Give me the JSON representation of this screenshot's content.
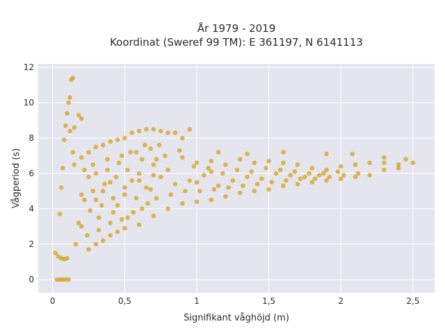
{
  "chart_data": {
    "type": "scatter",
    "title": "År 1979 - 2019",
    "subtitle": "Koordinat (Sweref 99 TM): E 361197, N 6141113",
    "xlabel": "Signifikant våghöjd (m)",
    "ylabel": "Vågperiod (s)",
    "xlim": [
      -0.1,
      2.65
    ],
    "ylim": [
      -0.75,
      12.2
    ],
    "xticks": [
      0,
      0.5,
      1,
      1.5,
      2,
      2.5
    ],
    "xtick_labels": [
      "0",
      "0,5",
      "1",
      "1,5",
      "2",
      "2,5"
    ],
    "yticks": [
      0,
      2,
      4,
      6,
      8,
      10,
      12
    ],
    "ytick_labels": [
      "0",
      "2",
      "4",
      "6",
      "8",
      "10",
      "12"
    ],
    "grid": true,
    "background_color": "#e5e5ee",
    "marker_color": "#d4a21c",
    "marker_opacity": 0.75,
    "series": [
      {
        "points": [
          [
            0.03,
            0
          ],
          [
            0.05,
            0
          ],
          [
            0.07,
            0
          ],
          [
            0.09,
            0
          ],
          [
            0.11,
            0
          ],
          [
            0.02,
            1.5
          ],
          [
            0.04,
            1.3
          ],
          [
            0.06,
            1.2
          ],
          [
            0.08,
            1.15
          ],
          [
            0.1,
            1.2
          ],
          [
            0.05,
            3.7
          ],
          [
            0.06,
            5.2
          ],
          [
            0.07,
            6.3
          ],
          [
            0.08,
            7.9
          ],
          [
            0.09,
            8.7
          ],
          [
            0.1,
            9.4
          ],
          [
            0.11,
            10.0
          ],
          [
            0.12,
            10.3
          ],
          [
            0.13,
            11.3
          ],
          [
            0.14,
            11.4
          ],
          [
            0.12,
            8.4
          ],
          [
            0.15,
            8.6
          ],
          [
            0.18,
            9.3
          ],
          [
            0.2,
            9.1
          ],
          [
            0.14,
            7.2
          ],
          [
            0.15,
            6.5
          ],
          [
            0.2,
            6.9
          ],
          [
            0.25,
            7.2
          ],
          [
            0.3,
            7.5
          ],
          [
            0.35,
            7.6
          ],
          [
            0.4,
            7.8
          ],
          [
            0.45,
            7.9
          ],
          [
            0.5,
            8.0
          ],
          [
            0.55,
            8.3
          ],
          [
            0.6,
            8.4
          ],
          [
            0.65,
            8.5
          ],
          [
            0.7,
            8.5
          ],
          [
            0.75,
            8.4
          ],
          [
            0.8,
            8.3
          ],
          [
            0.85,
            8.3
          ],
          [
            0.9,
            8.0
          ],
          [
            0.95,
            8.5
          ],
          [
            0.25,
            1.7
          ],
          [
            0.3,
            2.0
          ],
          [
            0.35,
            2.2
          ],
          [
            0.4,
            2.5
          ],
          [
            0.45,
            2.7
          ],
          [
            0.5,
            2.9
          ],
          [
            0.6,
            3.1
          ],
          [
            0.7,
            3.6
          ],
          [
            0.8,
            4.0
          ],
          [
            0.9,
            4.3
          ],
          [
            1.0,
            4.4
          ],
          [
            1.1,
            4.5
          ],
          [
            1.2,
            4.7
          ],
          [
            1.3,
            4.9
          ],
          [
            1.4,
            5.0
          ],
          [
            1.5,
            5.1
          ],
          [
            1.6,
            5.3
          ],
          [
            1.7,
            5.4
          ],
          [
            1.8,
            5.5
          ],
          [
            1.9,
            5.6
          ],
          [
            2.0,
            5.7
          ],
          [
            2.1,
            5.8
          ],
          [
            2.2,
            5.9
          ],
          [
            1.0,
            6.6
          ],
          [
            1.1,
            6.7
          ],
          [
            1.2,
            6.5
          ],
          [
            1.3,
            6.8
          ],
          [
            1.4,
            6.6
          ],
          [
            1.5,
            6.7
          ],
          [
            1.6,
            6.6
          ],
          [
            1.7,
            6.5
          ],
          [
            1.8,
            6.3
          ],
          [
            1.9,
            6.2
          ],
          [
            2.0,
            6.4
          ],
          [
            2.1,
            6.5
          ],
          [
            2.2,
            6.6
          ],
          [
            2.3,
            6.6
          ],
          [
            2.4,
            6.5
          ],
          [
            1.15,
            7.2
          ],
          [
            1.35,
            7.1
          ],
          [
            1.6,
            7.2
          ],
          [
            1.9,
            7.1
          ],
          [
            2.08,
            7.1
          ],
          [
            2.3,
            6.9
          ],
          [
            2.45,
            6.8
          ],
          [
            2.5,
            6.6
          ],
          [
            2.3,
            6.2
          ],
          [
            2.4,
            6.3
          ],
          [
            0.3,
            4.5
          ],
          [
            0.35,
            5.0
          ],
          [
            0.4,
            5.5
          ],
          [
            0.45,
            4.2
          ],
          [
            0.5,
            4.8
          ],
          [
            0.55,
            5.6
          ],
          [
            0.6,
            6.0
          ],
          [
            0.65,
            5.2
          ],
          [
            0.7,
            6.5
          ],
          [
            0.75,
            5.8
          ],
          [
            0.8,
            6.2
          ],
          [
            0.85,
            5.4
          ],
          [
            0.9,
            6.9
          ],
          [
            0.95,
            5.6
          ],
          [
            1.0,
            5.5
          ],
          [
            1.05,
            5.9
          ],
          [
            1.1,
            6.1
          ],
          [
            1.15,
            5.3
          ],
          [
            1.25,
            5.6
          ],
          [
            1.35,
            5.8
          ],
          [
            1.45,
            5.7
          ],
          [
            1.55,
            6.0
          ],
          [
            1.65,
            5.9
          ],
          [
            1.75,
            5.8
          ],
          [
            1.85,
            5.9
          ],
          [
            0.2,
            3.0
          ],
          [
            0.22,
            4.5
          ],
          [
            0.25,
            5.8
          ],
          [
            0.28,
            6.5
          ],
          [
            0.32,
            3.5
          ],
          [
            0.38,
            6.8
          ],
          [
            0.42,
            3.8
          ],
          [
            0.48,
            7.0
          ],
          [
            0.52,
            3.5
          ],
          [
            0.58,
            7.2
          ],
          [
            0.62,
            4.0
          ],
          [
            0.68,
            7.4
          ],
          [
            0.72,
            4.6
          ],
          [
            0.78,
            7.0
          ],
          [
            0.82,
            4.8
          ],
          [
            0.88,
            7.3
          ],
          [
            0.92,
            5.0
          ],
          [
            0.98,
            6.4
          ],
          [
            1.02,
            5.0
          ],
          [
            1.08,
            6.3
          ],
          [
            1.12,
            5.1
          ],
          [
            1.18,
            6.0
          ],
          [
            1.22,
            5.2
          ],
          [
            1.28,
            6.2
          ],
          [
            1.32,
            5.3
          ],
          [
            1.38,
            6.1
          ],
          [
            1.42,
            5.4
          ],
          [
            1.48,
            6.3
          ],
          [
            1.52,
            5.5
          ],
          [
            1.58,
            6.2
          ],
          [
            1.62,
            5.6
          ],
          [
            1.68,
            6.1
          ],
          [
            1.72,
            5.7
          ],
          [
            1.78,
            6.0
          ],
          [
            1.82,
            5.7
          ],
          [
            1.88,
            6.0
          ],
          [
            1.92,
            5.8
          ],
          [
            1.98,
            6.1
          ],
          [
            2.02,
            5.9
          ],
          [
            2.12,
            6.0
          ],
          [
            0.16,
            2.0
          ],
          [
            0.18,
            3.2
          ],
          [
            0.2,
            4.8
          ],
          [
            0.22,
            6.2
          ],
          [
            0.24,
            2.5
          ],
          [
            0.26,
            3.9
          ],
          [
            0.28,
            5.0
          ],
          [
            0.3,
            6.0
          ],
          [
            0.32,
            2.8
          ],
          [
            0.34,
            4.2
          ],
          [
            0.36,
            5.4
          ],
          [
            0.38,
            6.2
          ],
          [
            0.4,
            3.2
          ],
          [
            0.42,
            4.6
          ],
          [
            0.44,
            5.8
          ],
          [
            0.46,
            6.6
          ],
          [
            0.48,
            3.4
          ],
          [
            0.5,
            5.2
          ],
          [
            0.52,
            6.2
          ],
          [
            0.54,
            7.2
          ],
          [
            0.56,
            3.8
          ],
          [
            0.58,
            4.6
          ],
          [
            0.6,
            5.6
          ],
          [
            0.62,
            6.8
          ],
          [
            0.64,
            7.6
          ],
          [
            0.66,
            4.3
          ],
          [
            0.68,
            5.1
          ],
          [
            0.7,
            5.9
          ],
          [
            0.72,
            6.8
          ],
          [
            0.74,
            7.6
          ]
        ]
      }
    ]
  }
}
